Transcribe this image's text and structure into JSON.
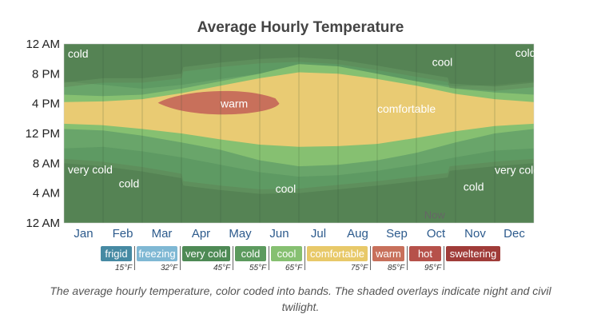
{
  "chart_data": {
    "type": "heatmap",
    "title": "Average Hourly Temperature",
    "y_ticks": [
      "12 AM",
      "8 PM",
      "4 PM",
      "12 PM",
      "8 AM",
      "4 AM",
      "12 AM"
    ],
    "x_categories": [
      "Jan",
      "Feb",
      "Mar",
      "Apr",
      "May",
      "Jun",
      "Jul",
      "Aug",
      "Sep",
      "Oct",
      "Nov",
      "Dec"
    ],
    "band_labels": [
      {
        "text": "cold",
        "month": 0.1,
        "hour": 22.7
      },
      {
        "text": "cool",
        "month": 9.4,
        "hour": 21.6
      },
      {
        "text": "cold",
        "month": 11.6,
        "hour": 22.8
      },
      {
        "text": "warm",
        "month": 4.0,
        "hour": 16.0
      },
      {
        "text": "comfortable",
        "month": 8.0,
        "hour": 15.3
      },
      {
        "text": "very cold",
        "month": 0.1,
        "hour": 7.2
      },
      {
        "text": "cold",
        "month": 1.4,
        "hour": 5.3
      },
      {
        "text": "cool",
        "month": 5.4,
        "hour": 4.6
      },
      {
        "text": "very cold",
        "month": 11.0,
        "hour": 7.1
      },
      {
        "text": "cold",
        "month": 10.2,
        "hour": 4.9
      }
    ],
    "now_label": {
      "text": "Now",
      "month": 9.2,
      "hour": 1.1
    },
    "legend": [
      {
        "label": "frigid",
        "color": "#468aa3"
      },
      {
        "label": "freezing",
        "color": "#7fb8d4"
      },
      {
        "label": "very cold",
        "color": "#4e8a55"
      },
      {
        "label": "cold",
        "color": "#5c9a5e"
      },
      {
        "label": "cool",
        "color": "#86c071"
      },
      {
        "label": "comfortable",
        "color": "#e8c969"
      },
      {
        "label": "warm",
        "color": "#c8705b"
      },
      {
        "label": "hot",
        "color": "#b6514a"
      },
      {
        "label": "sweltering",
        "color": "#a03c39"
      }
    ],
    "thresholds": [
      "15°F",
      "32°F",
      "45°F",
      "55°F",
      "65°F",
      "75°F",
      "85°F",
      "95°F"
    ],
    "colors": {
      "very_cold": "#5e9a63",
      "cold": "#69a56a",
      "cool": "#86c071",
      "comfortable": "#e9cb73",
      "warm": "#c8705b",
      "night_overlay": "#3a5e3a",
      "twilight_overlay": "#5f7a4f"
    }
  },
  "caption": "The average hourly temperature, color coded into bands. The shaded overlays indicate night and civil twilight."
}
